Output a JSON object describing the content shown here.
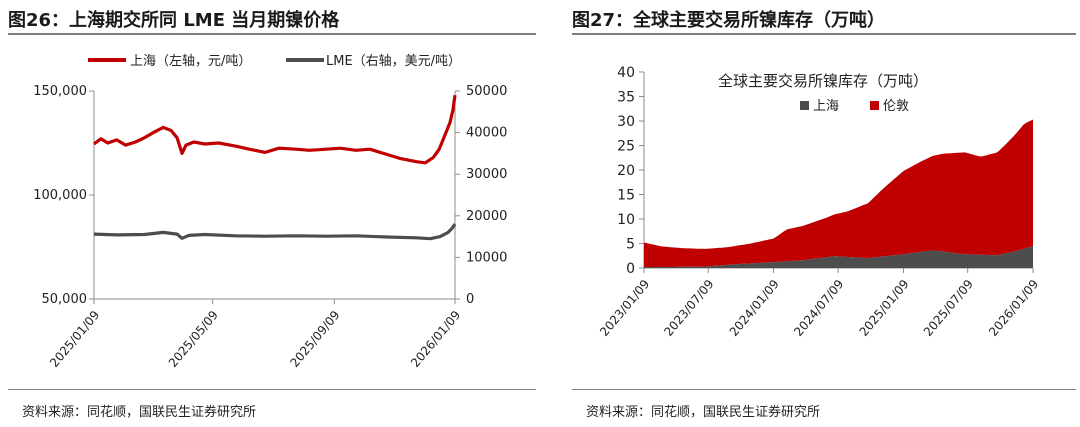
{
  "charts": [
    {
      "figure_title": "图26：上海期交所同 LME 当月期镍价格",
      "source": "资料来源：同花顺，国联民生证券研究所"
    },
    {
      "figure_title": "图27：全球主要交易所镍库存（万吨）",
      "source": "资料来源：同花顺，国联民生证券研究所"
    }
  ],
  "colors": {
    "shanghai_price": "#c00000",
    "lme_price": "#4d4d4d",
    "shanghai_stock": "#4d4d4d",
    "lme_stock": "#c00000"
  },
  "chart_data": [
    {
      "type": "line",
      "title": "图26：上海期交所同 LME 当月期镍价格",
      "x_start": "2025/01/09",
      "x_end": "2026/01/09",
      "x_ticks": [
        "2025/01/09",
        "2025/05/09",
        "2025/09/09",
        "2026/01/09"
      ],
      "y_left": {
        "ylim": [
          50000,
          150000
        ],
        "ticks": [
          "50,000",
          "100,000",
          "150,000"
        ]
      },
      "y_right": {
        "ylim": [
          0,
          50000
        ],
        "ticks": [
          "0",
          "10000",
          "20000",
          "30000",
          "40000",
          "50000"
        ]
      },
      "legend_position": "top",
      "series": [
        {
          "name": "上海（左轴，元/吨）",
          "axis": "left",
          "points": [
            [
              "2025/01/09",
              124500
            ],
            [
              "2025/01/16",
              127000
            ],
            [
              "2025/01/23",
              125000
            ],
            [
              "2025/02/01",
              126500
            ],
            [
              "2025/02/10",
              124000
            ],
            [
              "2025/02/20",
              125500
            ],
            [
              "2025/03/01",
              127500
            ],
            [
              "2025/03/10",
              130000
            ],
            [
              "2025/03/20",
              132500
            ],
            [
              "2025/03/28",
              131000
            ],
            [
              "2025/04/03",
              127500
            ],
            [
              "2025/04/08",
              120000
            ],
            [
              "2025/04/12",
              124000
            ],
            [
              "2025/04/20",
              125500
            ],
            [
              "2025/05/01",
              124500
            ],
            [
              "2025/05/15",
              125000
            ],
            [
              "2025/06/01",
              123500
            ],
            [
              "2025/06/15",
              122000
            ],
            [
              "2025/07/01",
              120500
            ],
            [
              "2025/07/15",
              122500
            ],
            [
              "2025/08/01",
              122000
            ],
            [
              "2025/08/15",
              121500
            ],
            [
              "2025/09/01",
              122000
            ],
            [
              "2025/09/15",
              122500
            ],
            [
              "2025/10/01",
              121500
            ],
            [
              "2025/10/15",
              122000
            ],
            [
              "2025/11/01",
              119500
            ],
            [
              "2025/11/15",
              117500
            ],
            [
              "2025/12/01",
              116000
            ],
            [
              "2025/12/10",
              115500
            ],
            [
              "2025/12/18",
              118000
            ],
            [
              "2025/12/24",
              122000
            ],
            [
              "2025/12/30",
              129000
            ],
            [
              "2026/01/04",
              135000
            ],
            [
              "2026/01/07",
              141000
            ],
            [
              "2026/01/09",
              148000
            ]
          ]
        },
        {
          "name": "LME（右轴，美元/吨）",
          "axis": "right",
          "points": [
            [
              "2025/01/09",
              15600
            ],
            [
              "2025/02/01",
              15400
            ],
            [
              "2025/03/01",
              15500
            ],
            [
              "2025/03/20",
              16000
            ],
            [
              "2025/04/03",
              15600
            ],
            [
              "2025/04/08",
              14600
            ],
            [
              "2025/04/15",
              15300
            ],
            [
              "2025/05/01",
              15500
            ],
            [
              "2025/06/01",
              15200
            ],
            [
              "2025/07/01",
              15100
            ],
            [
              "2025/08/01",
              15200
            ],
            [
              "2025/09/01",
              15100
            ],
            [
              "2025/10/01",
              15200
            ],
            [
              "2025/11/01",
              14900
            ],
            [
              "2025/12/01",
              14700
            ],
            [
              "2025/12/15",
              14500
            ],
            [
              "2025/12/25",
              15000
            ],
            [
              "2026/01/02",
              16000
            ],
            [
              "2026/01/06",
              17000
            ],
            [
              "2026/01/09",
              18000
            ]
          ]
        }
      ]
    },
    {
      "type": "area",
      "title": "全球主要交易所镍库存（万吨）",
      "stacked": true,
      "x_start": "2023/01/09",
      "x_end": "2026/01/09",
      "x_ticks": [
        "2023/01/09",
        "2023/07/09",
        "2024/01/09",
        "2024/07/09",
        "2025/01/09",
        "2025/07/09",
        "2026/01/09"
      ],
      "ylim": [
        0,
        40
      ],
      "y_ticks": [
        "0",
        "5",
        "10",
        "15",
        "20",
        "25",
        "30",
        "35",
        "40"
      ],
      "legend_position": "top-left",
      "series": [
        {
          "name": "上海",
          "points": [
            [
              "2023/01/09",
              0.2
            ],
            [
              "2023/04/01",
              0.2
            ],
            [
              "2023/07/01",
              0.3
            ],
            [
              "2023/10/01",
              0.8
            ],
            [
              "2024/01/09",
              1.2
            ],
            [
              "2024/04/01",
              1.6
            ],
            [
              "2024/07/01",
              2.4
            ],
            [
              "2024/10/01",
              2.0
            ],
            [
              "2025/01/09",
              2.8
            ],
            [
              "2025/04/01",
              3.6
            ],
            [
              "2025/07/01",
              2.8
            ],
            [
              "2025/10/01",
              2.6
            ],
            [
              "2025/12/01",
              3.6
            ],
            [
              "2026/01/09",
              4.5
            ]
          ]
        },
        {
          "name": "伦敦",
          "points": [
            [
              "2023/01/09",
              5.0
            ],
            [
              "2023/03/01",
              4.2
            ],
            [
              "2023/05/01",
              3.8
            ],
            [
              "2023/07/01",
              3.6
            ],
            [
              "2023/09/01",
              3.6
            ],
            [
              "2023/11/01",
              4.0
            ],
            [
              "2024/01/09",
              4.8
            ],
            [
              "2024/02/15",
              6.5
            ],
            [
              "2024/04/01",
              7.0
            ],
            [
              "2024/06/01",
              8.0
            ],
            [
              "2024/08/01",
              9.2
            ],
            [
              "2024/10/01",
              11.2
            ],
            [
              "2024/11/15",
              14.0
            ],
            [
              "2025/01/09",
              17.0
            ],
            [
              "2025/03/01",
              18.5
            ],
            [
              "2025/05/01",
              20.0
            ],
            [
              "2025/07/01",
              20.8
            ],
            [
              "2025/08/15",
              20.0
            ],
            [
              "2025/10/01",
              21.0
            ],
            [
              "2025/11/15",
              23.5
            ],
            [
              "2025/12/15",
              25.5
            ],
            [
              "2026/01/09",
              25.8
            ]
          ]
        }
      ]
    }
  ]
}
